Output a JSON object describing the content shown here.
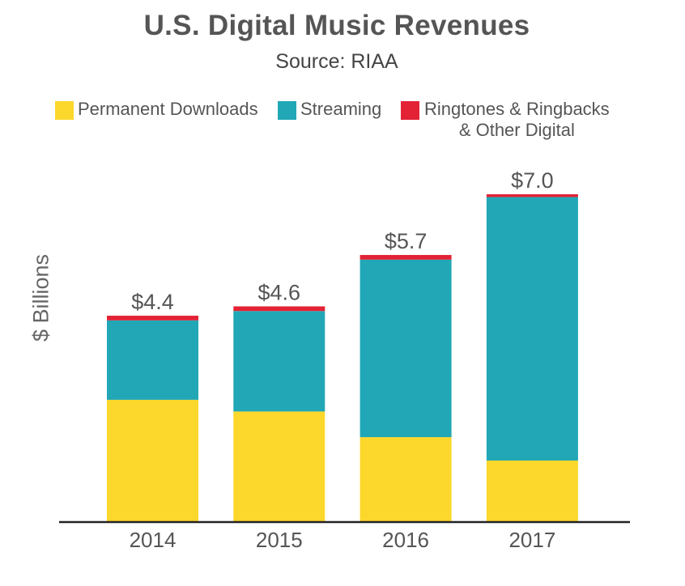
{
  "chart_data": {
    "type": "bar",
    "stacked": true,
    "title": "U.S. Digital Music Revenues",
    "subtitle": "Source: RIAA",
    "xlabel": "",
    "ylabel": "$ Billions",
    "ylim": [
      0,
      7.0
    ],
    "categories": [
      "2014",
      "2015",
      "2016",
      "2017"
    ],
    "series": [
      {
        "name": "Permanent Downloads",
        "color": "#fcd72c",
        "values": [
          2.6,
          2.35,
          1.8,
          1.3
        ]
      },
      {
        "name": "Streaming",
        "color": "#21a7b6",
        "values": [
          1.7,
          2.15,
          3.8,
          5.64
        ]
      },
      {
        "name": "Ringtones & Ringbacks & Other Digital",
        "color": "#e32235",
        "values": [
          0.1,
          0.1,
          0.1,
          0.06
        ]
      }
    ],
    "totals": [
      4.4,
      4.6,
      5.7,
      7.0
    ],
    "total_labels": [
      "$4.4",
      "$4.6",
      "$5.7",
      "$7.0"
    ],
    "legend_position": "top"
  },
  "legend": {
    "items": [
      {
        "label": "Permanent Downloads",
        "color": "#fcd72c"
      },
      {
        "label": "Streaming",
        "color": "#21a7b6"
      },
      {
        "label_lines": [
          "Ringtones & Ringbacks",
          "& Other Digital"
        ],
        "color": "#e32235"
      }
    ]
  }
}
